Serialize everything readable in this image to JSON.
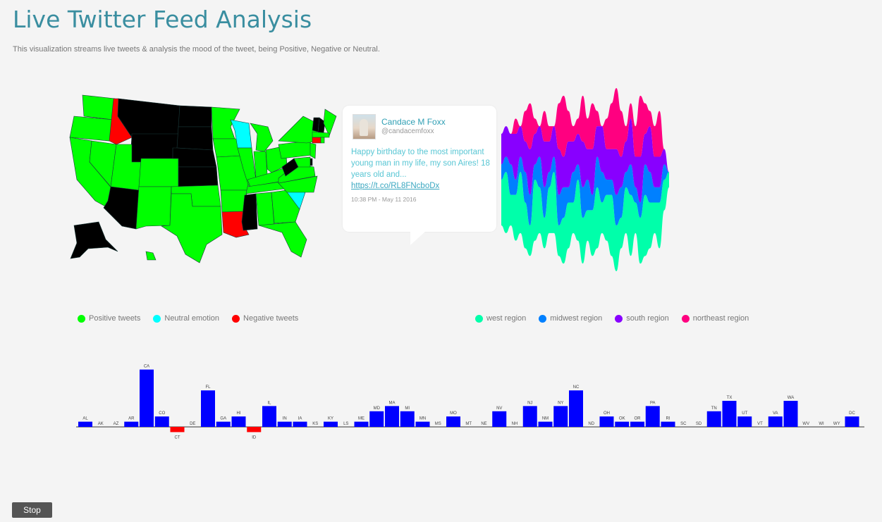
{
  "header": {
    "title": "Live Twitter Feed Analysis",
    "subtitle": "This visualization streams live tweets & analysis the mood of the tweet, being Positive, Negative or Neutral."
  },
  "colors": {
    "positive": "#00ff00",
    "neutral": "#00ffff",
    "negative": "#ff0000",
    "none": "#000000",
    "west": "#00ffaa",
    "midwest": "#0080ff",
    "south": "#8800ff",
    "northeast": "#ff0080",
    "bar": "#0000ff",
    "bar_negative": "#ff0000"
  },
  "tweet": {
    "name": "Candace M Foxx",
    "handle": "@candacemfoxx",
    "text": "Happy birthday to the most important young man in my life, my son Aires! 18 years old and...",
    "link": "https://t.co/RL8FNcboDx",
    "time": "10:38 PM - May 11 2016"
  },
  "legend_mood": [
    {
      "label": "Positive tweets",
      "color": "#00ff00"
    },
    {
      "label": "Neutral emotion",
      "color": "#00ffff"
    },
    {
      "label": "Negative tweets",
      "color": "#ff0000"
    }
  ],
  "legend_region": [
    {
      "label": "west region",
      "color": "#00ffaa"
    },
    {
      "label": "midwest region",
      "color": "#0080ff"
    },
    {
      "label": "south region",
      "color": "#8800ff"
    },
    {
      "label": "northeast region",
      "color": "#ff0080"
    }
  ],
  "controls": {
    "stop_label": "Stop"
  },
  "chart_data": [
    {
      "type": "heatmap",
      "description_states": "US choropleth colored by tweet mood",
      "states": {
        "WA": "positive",
        "OR": "positive",
        "CA": "positive",
        "NV": "positive",
        "ID": "negative",
        "MT": "none",
        "WY": "none",
        "UT": "positive",
        "AZ": "none",
        "CO": "positive",
        "NM": "positive",
        "ND": "none",
        "SD": "none",
        "NE": "none",
        "KS": "none",
        "OK": "positive",
        "TX": "positive",
        "MN": "positive",
        "IA": "positive",
        "MO": "positive",
        "AR": "positive",
        "LA": "negative",
        "WI": "neutral",
        "IL": "positive",
        "MI": "positive",
        "IN": "positive",
        "OH": "positive",
        "KY": "positive",
        "TN": "positive",
        "MS": "none",
        "AL": "positive",
        "GA": "positive",
        "FL": "positive",
        "SC": "neutral",
        "NC": "positive",
        "VA": "positive",
        "WV": "none",
        "PA": "positive",
        "NY": "positive",
        "VT": "none",
        "NH": "none",
        "ME": "positive",
        "MA": "positive",
        "CT": "negative",
        "RI": "positive",
        "NJ": "positive",
        "DE": "none",
        "MD": "positive",
        "AK": "none",
        "HI": "positive"
      }
    },
    {
      "type": "area",
      "stacked": true,
      "series": [
        {
          "name": "west region",
          "values": [
            3,
            4,
            2,
            3,
            4,
            3,
            2,
            4,
            3,
            2,
            3,
            4,
            2,
            3,
            3,
            2,
            4,
            3,
            2,
            3,
            4,
            2,
            3,
            4,
            3,
            2,
            3,
            4,
            2,
            3,
            4,
            3,
            2,
            3,
            2,
            1
          ]
        },
        {
          "name": "midwest region",
          "values": [
            1,
            1,
            2,
            1,
            1,
            2,
            2,
            1,
            2,
            2,
            1,
            1,
            2,
            2,
            1,
            2,
            1,
            2,
            2,
            1,
            2,
            2,
            1,
            1,
            2,
            2,
            1,
            2,
            1,
            1,
            2,
            2,
            1,
            1,
            1,
            0
          ]
        },
        {
          "name": "south region",
          "values": [
            2,
            2,
            2,
            3,
            2,
            2,
            3,
            2,
            2,
            3,
            2,
            2,
            3,
            2,
            3,
            2,
            2,
            3,
            2,
            3,
            2,
            3,
            2,
            2,
            3,
            2,
            2,
            3,
            2,
            3,
            2,
            3,
            2,
            2,
            1,
            0
          ]
        },
        {
          "name": "northeast region",
          "values": [
            0,
            0,
            0,
            1,
            0,
            2,
            3,
            1,
            0,
            2,
            1,
            0,
            3,
            4,
            2,
            1,
            1,
            3,
            2,
            3,
            1,
            0,
            2,
            3,
            4,
            3,
            1,
            1,
            2,
            4,
            2,
            1,
            2,
            3,
            0,
            0
          ]
        }
      ]
    },
    {
      "type": "bar",
      "categories": [
        "AL",
        "AK",
        "AZ",
        "AR",
        "CA",
        "CO",
        "CT",
        "DE",
        "FL",
        "GA",
        "HI",
        "ID",
        "IL",
        "IN",
        "IA",
        "KS",
        "KY",
        "LS",
        "ME",
        "MD",
        "MA",
        "MI",
        "MN",
        "MS",
        "MO",
        "MT",
        "NE",
        "NV",
        "NH",
        "NJ",
        "NM",
        "NY",
        "NC",
        "ND",
        "OH",
        "OK",
        "OR",
        "PA",
        "RI",
        "SC",
        "SD",
        "TN",
        "TX",
        "UT",
        "VT",
        "VA",
        "WA",
        "WV",
        "WI",
        "WY",
        "DC"
      ],
      "values": [
        1,
        0,
        0,
        1,
        11,
        2,
        -1,
        0,
        7,
        1,
        2,
        -1,
        4,
        1,
        1,
        0,
        1,
        0,
        1,
        3,
        4,
        3,
        1,
        0,
        2,
        0,
        0,
        3,
        0,
        4,
        1,
        4,
        7,
        0,
        2,
        1,
        1,
        4,
        1,
        0,
        0,
        3,
        5,
        2,
        0,
        2,
        5,
        0,
        0,
        0,
        2
      ]
    }
  ]
}
